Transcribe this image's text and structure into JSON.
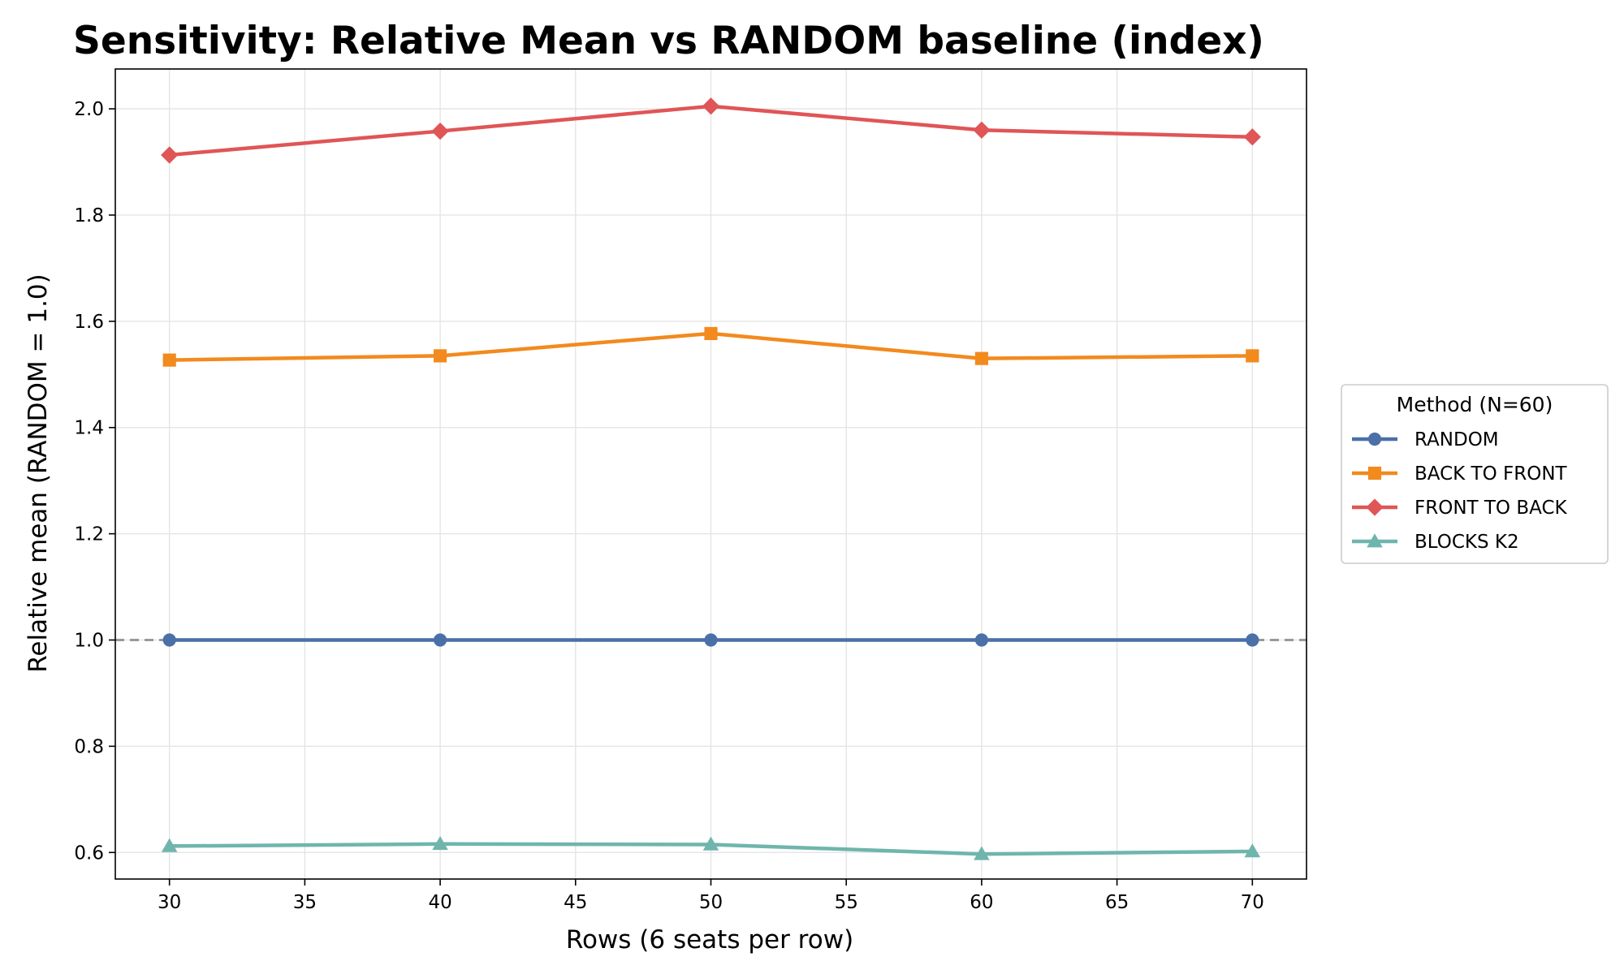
{
  "chart_data": {
    "type": "line",
    "title": "Sensitivity: Relative Mean vs RANDOM baseline (index)",
    "xlabel": "Rows (6 seats per row)",
    "ylabel": "Relative mean (RANDOM = 1.0)",
    "x": [
      30,
      40,
      50,
      60,
      70
    ],
    "xlim": [
      28,
      72
    ],
    "ylim": [
      0.55,
      2.075
    ],
    "xticks": [
      30,
      35,
      40,
      45,
      50,
      55,
      60,
      65,
      70
    ],
    "yticks": [
      0.6,
      0.8,
      1.0,
      1.2,
      1.4,
      1.6,
      1.8,
      2.0
    ],
    "xtick_labels": [
      "30",
      "35",
      "40",
      "45",
      "50",
      "55",
      "60",
      "65",
      "70"
    ],
    "ytick_labels": [
      "0.6",
      "0.8",
      "1.0",
      "1.2",
      "1.4",
      "1.6",
      "1.8",
      "2.0"
    ],
    "grid": true,
    "baseline": {
      "y": 1.0,
      "style": "dashed",
      "color": "#999999"
    },
    "legend": {
      "title": "Method (N=60)",
      "placement": "right"
    },
    "series": [
      {
        "name": "RANDOM",
        "values": [
          1.0,
          1.0,
          1.0,
          1.0,
          1.0
        ],
        "color": "#4a70a8",
        "marker": "circle"
      },
      {
        "name": "BACK TO FRONT",
        "values": [
          1.527,
          1.535,
          1.577,
          1.53,
          1.535
        ],
        "color": "#f28a1e",
        "marker": "square"
      },
      {
        "name": "FRONT TO BACK",
        "values": [
          1.913,
          1.958,
          2.005,
          1.96,
          1.947
        ],
        "color": "#e05556",
        "marker": "diamond"
      },
      {
        "name": "BLOCKS K2",
        "values": [
          0.612,
          0.616,
          0.615,
          0.597,
          0.602
        ],
        "color": "#6fb5ad",
        "marker": "triangle"
      }
    ]
  }
}
